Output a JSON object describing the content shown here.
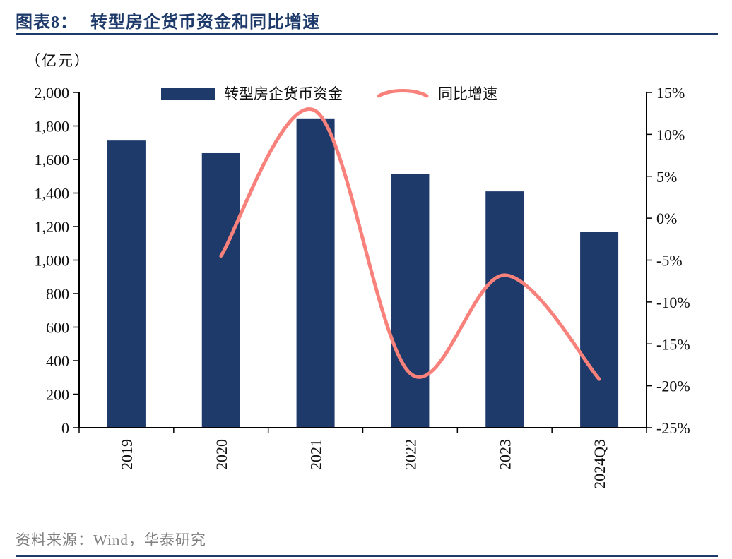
{
  "header": {
    "title_prefix": "图表8：",
    "title": "转型房企货币资金和同比增速"
  },
  "unit_label": "（亿元）",
  "source": "资料来源：Wind，华泰研究",
  "colors": {
    "navy": "#1D3A6A",
    "bar": "#1D3A6A",
    "line": "#F9817B",
    "axis_line": "#000000",
    "source_text": "#808080"
  },
  "chart_data": {
    "type": "bar+line",
    "title": "转型房企货币资金和同比增速",
    "categories": [
      "2019",
      "2020",
      "2021",
      "2022",
      "2023",
      "2024Q3"
    ],
    "series": [
      {
        "name": "转型房企货币资金",
        "type": "bar",
        "axis": "left",
        "values": [
          1713,
          1638,
          1845,
          1512,
          1410,
          1170
        ]
      },
      {
        "name": "同比增速",
        "type": "line",
        "axis": "right",
        "values": [
          null,
          -4.5,
          12.8,
          -18.5,
          -6.8,
          -19.2
        ]
      }
    ],
    "left_axis": {
      "label": "（亿元）",
      "min": 0,
      "max": 2000,
      "tick_step": 200,
      "tick_labels": [
        "0",
        "200",
        "400",
        "600",
        "800",
        "1,000",
        "1,200",
        "1,400",
        "1,600",
        "1,800",
        "2,000"
      ]
    },
    "right_axis": {
      "min": -25,
      "max": 15,
      "tick_step": 5,
      "tick_labels": [
        "-25%",
        "-20%",
        "-15%",
        "-10%",
        "-5%",
        "0%",
        "5%",
        "10%",
        "15%"
      ]
    },
    "legend_position": "top",
    "grid": false
  }
}
